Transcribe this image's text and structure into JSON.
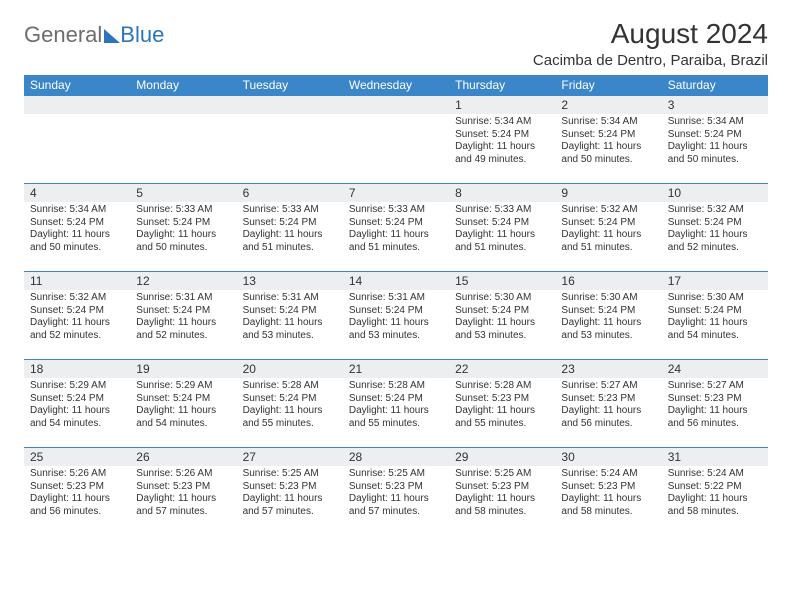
{
  "brand": {
    "general": "General",
    "blue": "Blue"
  },
  "title": "August 2024",
  "location": "Cacimba de Dentro, Paraiba, Brazil",
  "colors": {
    "header_bg": "#3a86c8",
    "header_text": "#ffffff",
    "daynum_bg": "#eceeef",
    "rule": "#3a86c8",
    "logo_gray": "#6d6d6d",
    "logo_blue": "#2a75bb",
    "text": "#333333",
    "page_bg": "#ffffff"
  },
  "day_headers": [
    "Sunday",
    "Monday",
    "Tuesday",
    "Wednesday",
    "Thursday",
    "Friday",
    "Saturday"
  ],
  "weeks": [
    [
      null,
      null,
      null,
      null,
      {
        "n": "1",
        "sr": "5:34 AM",
        "ss": "5:24 PM",
        "dl": "11 hours and 49 minutes."
      },
      {
        "n": "2",
        "sr": "5:34 AM",
        "ss": "5:24 PM",
        "dl": "11 hours and 50 minutes."
      },
      {
        "n": "3",
        "sr": "5:34 AM",
        "ss": "5:24 PM",
        "dl": "11 hours and 50 minutes."
      }
    ],
    [
      {
        "n": "4",
        "sr": "5:34 AM",
        "ss": "5:24 PM",
        "dl": "11 hours and 50 minutes."
      },
      {
        "n": "5",
        "sr": "5:33 AM",
        "ss": "5:24 PM",
        "dl": "11 hours and 50 minutes."
      },
      {
        "n": "6",
        "sr": "5:33 AM",
        "ss": "5:24 PM",
        "dl": "11 hours and 51 minutes."
      },
      {
        "n": "7",
        "sr": "5:33 AM",
        "ss": "5:24 PM",
        "dl": "11 hours and 51 minutes."
      },
      {
        "n": "8",
        "sr": "5:33 AM",
        "ss": "5:24 PM",
        "dl": "11 hours and 51 minutes."
      },
      {
        "n": "9",
        "sr": "5:32 AM",
        "ss": "5:24 PM",
        "dl": "11 hours and 51 minutes."
      },
      {
        "n": "10",
        "sr": "5:32 AM",
        "ss": "5:24 PM",
        "dl": "11 hours and 52 minutes."
      }
    ],
    [
      {
        "n": "11",
        "sr": "5:32 AM",
        "ss": "5:24 PM",
        "dl": "11 hours and 52 minutes."
      },
      {
        "n": "12",
        "sr": "5:31 AM",
        "ss": "5:24 PM",
        "dl": "11 hours and 52 minutes."
      },
      {
        "n": "13",
        "sr": "5:31 AM",
        "ss": "5:24 PM",
        "dl": "11 hours and 53 minutes."
      },
      {
        "n": "14",
        "sr": "5:31 AM",
        "ss": "5:24 PM",
        "dl": "11 hours and 53 minutes."
      },
      {
        "n": "15",
        "sr": "5:30 AM",
        "ss": "5:24 PM",
        "dl": "11 hours and 53 minutes."
      },
      {
        "n": "16",
        "sr": "5:30 AM",
        "ss": "5:24 PM",
        "dl": "11 hours and 53 minutes."
      },
      {
        "n": "17",
        "sr": "5:30 AM",
        "ss": "5:24 PM",
        "dl": "11 hours and 54 minutes."
      }
    ],
    [
      {
        "n": "18",
        "sr": "5:29 AM",
        "ss": "5:24 PM",
        "dl": "11 hours and 54 minutes."
      },
      {
        "n": "19",
        "sr": "5:29 AM",
        "ss": "5:24 PM",
        "dl": "11 hours and 54 minutes."
      },
      {
        "n": "20",
        "sr": "5:28 AM",
        "ss": "5:24 PM",
        "dl": "11 hours and 55 minutes."
      },
      {
        "n": "21",
        "sr": "5:28 AM",
        "ss": "5:24 PM",
        "dl": "11 hours and 55 minutes."
      },
      {
        "n": "22",
        "sr": "5:28 AM",
        "ss": "5:23 PM",
        "dl": "11 hours and 55 minutes."
      },
      {
        "n": "23",
        "sr": "5:27 AM",
        "ss": "5:23 PM",
        "dl": "11 hours and 56 minutes."
      },
      {
        "n": "24",
        "sr": "5:27 AM",
        "ss": "5:23 PM",
        "dl": "11 hours and 56 minutes."
      }
    ],
    [
      {
        "n": "25",
        "sr": "5:26 AM",
        "ss": "5:23 PM",
        "dl": "11 hours and 56 minutes."
      },
      {
        "n": "26",
        "sr": "5:26 AM",
        "ss": "5:23 PM",
        "dl": "11 hours and 57 minutes."
      },
      {
        "n": "27",
        "sr": "5:25 AM",
        "ss": "5:23 PM",
        "dl": "11 hours and 57 minutes."
      },
      {
        "n": "28",
        "sr": "5:25 AM",
        "ss": "5:23 PM",
        "dl": "11 hours and 57 minutes."
      },
      {
        "n": "29",
        "sr": "5:25 AM",
        "ss": "5:23 PM",
        "dl": "11 hours and 58 minutes."
      },
      {
        "n": "30",
        "sr": "5:24 AM",
        "ss": "5:23 PM",
        "dl": "11 hours and 58 minutes."
      },
      {
        "n": "31",
        "sr": "5:24 AM",
        "ss": "5:22 PM",
        "dl": "11 hours and 58 minutes."
      }
    ]
  ],
  "labels": {
    "sunrise": "Sunrise:",
    "sunset": "Sunset:",
    "daylight": "Daylight:"
  }
}
